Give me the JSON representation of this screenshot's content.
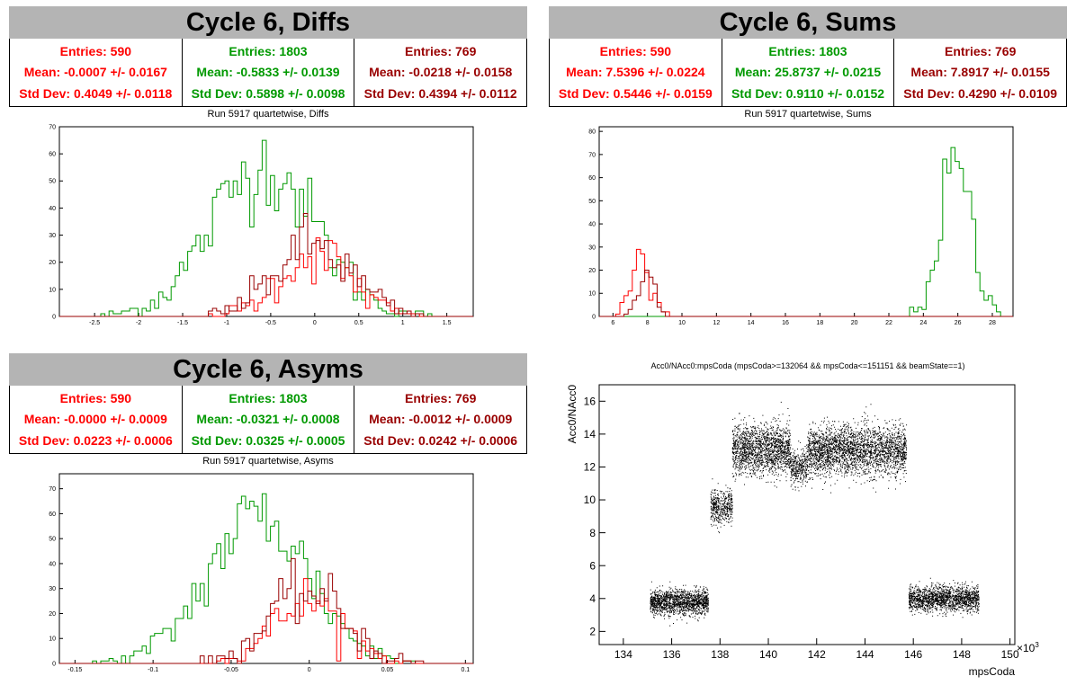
{
  "colors": {
    "red": "#ff0000",
    "green": "#009900",
    "darkred": "#990000",
    "banner": "#b4b4b4"
  },
  "panels": {
    "diffs": {
      "banner": "Cycle 6, Diffs",
      "stats": [
        {
          "color": "#ff0000",
          "entries": "Entries: 590",
          "mean": "Mean: -0.0007 +/- 0.0167",
          "stddev": "Std Dev: 0.4049 +/- 0.0118"
        },
        {
          "color": "#009900",
          "entries": "Entries: 1803",
          "mean": "Mean: -0.5833 +/- 0.0139",
          "stddev": "Std Dev: 0.5898 +/- 0.0098"
        },
        {
          "color": "#990000",
          "entries": "Entries: 769",
          "mean": "Mean: -0.0218 +/- 0.0158",
          "stddev": "Std Dev: 0.4394 +/- 0.0112"
        }
      ],
      "subtitle": "Run 5917 quartetwise, Diffs"
    },
    "sums": {
      "banner": "Cycle 6, Sums",
      "stats": [
        {
          "color": "#ff0000",
          "entries": "Entries: 590",
          "mean": "Mean: 7.5396 +/- 0.0224",
          "stddev": "Std Dev: 0.5446 +/- 0.0159"
        },
        {
          "color": "#009900",
          "entries": "Entries: 1803",
          "mean": "Mean: 25.8737 +/- 0.0215",
          "stddev": "Std Dev: 0.9110 +/- 0.0152"
        },
        {
          "color": "#990000",
          "entries": "Entries: 769",
          "mean": "Mean: 7.8917 +/- 0.0155",
          "stddev": "Std Dev: 0.4290 +/- 0.0109"
        }
      ],
      "subtitle": "Run 5917 quartetwise, Sums"
    },
    "asyms": {
      "banner": "Cycle 6, Asyms",
      "stats": [
        {
          "color": "#ff0000",
          "entries": "Entries: 590",
          "mean": "Mean: -0.0000 +/- 0.0009",
          "stddev": "Std Dev: 0.0223 +/- 0.0006"
        },
        {
          "color": "#009900",
          "entries": "Entries: 1803",
          "mean": "Mean: -0.0321 +/- 0.0008",
          "stddev": "Std Dev: 0.0325 +/- 0.0005"
        },
        {
          "color": "#990000",
          "entries": "Entries: 769",
          "mean": "Mean: -0.0012 +/- 0.0009",
          "stddev": "Std Dev: 0.0242 +/- 0.0006"
        }
      ],
      "subtitle": "Run 5917 quartetwise, Asyms"
    },
    "scatter": {
      "title": "Acc0/NAcc0:mpsCoda (mpsCoda>=132064 && mpsCoda<=151151 && beamState==1)"
    }
  },
  "chart_data": [
    {
      "type": "bar",
      "id": "diffs",
      "xlim": [
        -2.9,
        1.8
      ],
      "ylim": [
        0,
        70
      ],
      "xticks": [
        -2.5,
        -2,
        -1.5,
        -1,
        -0.5,
        0,
        0.5,
        1,
        1.5
      ],
      "xtick_labels": [
        "-2.5",
        "-2",
        "-1.5",
        "-1",
        "-0.5",
        "0",
        "0.5",
        "1",
        "1.5"
      ],
      "yticks": [
        0,
        10,
        20,
        30,
        40,
        50,
        60,
        70
      ],
      "ytick_labels": [
        "0",
        "10",
        "20",
        "30",
        "40",
        "50",
        "60",
        "70"
      ],
      "series": [
        {
          "color": "#009900",
          "mean": -0.5833,
          "sd": 0.5898,
          "peak": 68
        },
        {
          "color": "#ff0000",
          "mean": -0.0007,
          "sd": 0.4049,
          "peak": 28
        },
        {
          "color": "#990000",
          "mean": -0.0218,
          "sd": 0.4394,
          "peak": 32
        }
      ]
    },
    {
      "type": "bar",
      "id": "sums",
      "xlim": [
        5.2,
        29.2
      ],
      "ylim": [
        0,
        82
      ],
      "xticks": [
        6,
        8,
        10,
        12,
        14,
        16,
        18,
        20,
        22,
        24,
        26,
        28
      ],
      "xtick_labels": [
        "6",
        "8",
        "10",
        "12",
        "14",
        "16",
        "18",
        "20",
        "22",
        "24",
        "26",
        "28"
      ],
      "yticks": [
        0,
        10,
        20,
        30,
        40,
        50,
        60,
        70,
        80
      ],
      "ytick_labels": [
        "0",
        "10",
        "20",
        "30",
        "40",
        "50",
        "60",
        "70",
        "80"
      ],
      "series": [
        {
          "color": "#009900",
          "mean": 25.8737,
          "sd": 0.911,
          "peak": 79
        },
        {
          "color": "#ff0000",
          "mean": 7.5396,
          "sd": 0.5446,
          "peak": 33
        },
        {
          "color": "#990000",
          "mean": 7.8917,
          "sd": 0.429,
          "peak": 30
        }
      ]
    },
    {
      "type": "bar",
      "id": "asyms",
      "xlim": [
        -0.16,
        0.105
      ],
      "ylim": [
        0,
        76
      ],
      "xticks": [
        -0.15,
        -0.1,
        -0.05,
        0,
        0.05,
        0.1
      ],
      "xtick_labels": [
        "-0.15",
        "-0.1",
        "-0.05",
        "0",
        "0.05",
        "0.1"
      ],
      "yticks": [
        0,
        10,
        20,
        30,
        40,
        50,
        60,
        70
      ],
      "ytick_labels": [
        "0",
        "10",
        "20",
        "30",
        "40",
        "50",
        "60",
        "70"
      ],
      "series": [
        {
          "color": "#009900",
          "mean": -0.0321,
          "sd": 0.0325,
          "peak": 72
        },
        {
          "color": "#ff0000",
          "mean": 0.0,
          "sd": 0.0223,
          "peak": 30
        },
        {
          "color": "#990000",
          "mean": -0.0012,
          "sd": 0.0242,
          "peak": 35
        }
      ]
    },
    {
      "type": "scatter",
      "id": "scatter",
      "xlim": [
        133,
        150.2
      ],
      "ylim": [
        1.2,
        17
      ],
      "xticks": [
        134,
        136,
        138,
        140,
        142,
        144,
        146,
        148,
        150
      ],
      "xtick_labels": [
        "134",
        "136",
        "138",
        "140",
        "142",
        "144",
        "146",
        "148",
        "150"
      ],
      "yticks": [
        2,
        4,
        6,
        8,
        10,
        12,
        14,
        16
      ],
      "ytick_labels": [
        "2",
        "4",
        "6",
        "8",
        "10",
        "12",
        "14",
        "16"
      ],
      "xlabel": "mpsCoda",
      "ylabel": "Acc0/NAcc0",
      "xmultiplier": "×10",
      "xmultiplier_exp": "3",
      "clusters": [
        {
          "x": [
            135.1,
            137.5
          ],
          "y": 3.8,
          "sd": 0.38,
          "n": 1500
        },
        {
          "x": [
            137.6,
            138.5
          ],
          "y": 9.6,
          "sd": 0.5,
          "n": 450
        },
        {
          "x": [
            138.5,
            140.9
          ],
          "y": 13.1,
          "sd": 0.75,
          "n": 1700
        },
        {
          "x": [
            140.9,
            141.6
          ],
          "y": 12.0,
          "sd": 0.5,
          "n": 350
        },
        {
          "x": [
            141.6,
            145.7
          ],
          "y": 13.0,
          "sd": 0.75,
          "n": 2800
        },
        {
          "x": [
            145.8,
            148.7
          ],
          "y": 4.0,
          "sd": 0.38,
          "n": 1700
        }
      ]
    }
  ]
}
